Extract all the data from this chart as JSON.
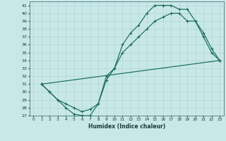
{
  "title": "",
  "xlabel": "Humidex (Indice chaleur)",
  "bg_color": "#c8e8e8",
  "line_color": "#1a6b5a",
  "grid_color": "#b0d4d4",
  "xlim": [
    -0.5,
    23.5
  ],
  "ylim": [
    27,
    41.5
  ],
  "xticks": [
    0,
    1,
    2,
    3,
    4,
    5,
    6,
    7,
    8,
    9,
    10,
    11,
    12,
    13,
    14,
    15,
    16,
    17,
    18,
    19,
    20,
    21,
    22,
    23
  ],
  "yticks": [
    27,
    28,
    29,
    30,
    31,
    32,
    33,
    34,
    35,
    36,
    37,
    38,
    39,
    40,
    41
  ],
  "curve1_x": [
    1,
    2,
    3,
    4,
    5,
    6,
    7,
    8,
    9,
    10,
    11,
    12,
    13,
    14,
    15,
    16,
    17,
    18,
    19,
    20,
    21,
    22,
    23
  ],
  "curve1_y": [
    31,
    30,
    29,
    28,
    27.2,
    27,
    27,
    28.5,
    32,
    33,
    36,
    37.5,
    38.5,
    40,
    41,
    41,
    41,
    40.5,
    40.5,
    39,
    37,
    35,
    34
  ],
  "curve2_x": [
    1,
    2,
    3,
    4,
    5,
    6,
    7,
    8,
    9,
    10,
    11,
    12,
    13,
    14,
    15,
    16,
    17,
    18,
    19,
    20,
    21,
    22,
    23
  ],
  "curve2_y": [
    31,
    30,
    29,
    28.5,
    28,
    27.5,
    27.8,
    28.5,
    31.5,
    33,
    35,
    36,
    37,
    38,
    39,
    39.5,
    40,
    40,
    39,
    39,
    37.5,
    35.5,
    34
  ],
  "curve3_x": [
    1,
    23
  ],
  "curve3_y": [
    31,
    34
  ]
}
